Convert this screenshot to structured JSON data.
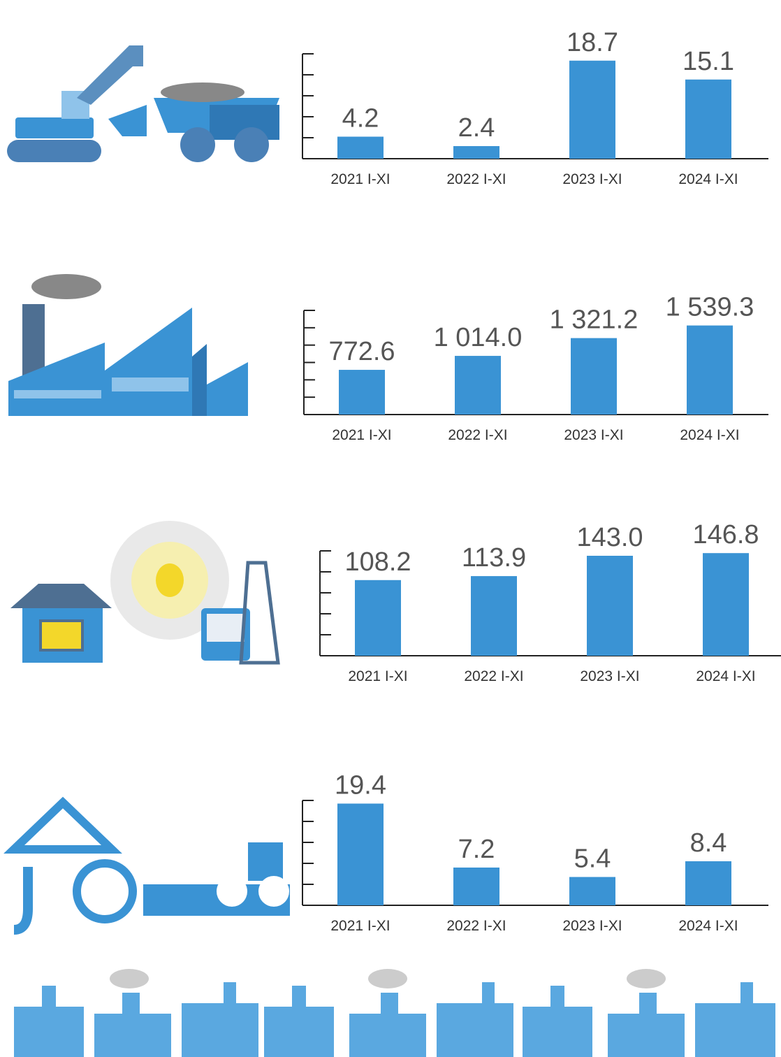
{
  "chart_data": [
    {
      "type": "bar",
      "categories": [
        "2021 I-XI",
        "2022 I-XI",
        "2023 I-XI",
        "2024 I-XI"
      ],
      "values": [
        4.2,
        2.4,
        18.7,
        15.1
      ],
      "color": "#3a93d4",
      "ylim": [
        0,
        20
      ],
      "yticks": [
        0,
        4,
        8,
        12,
        16,
        20
      ]
    },
    {
      "type": "bar",
      "categories": [
        "2021 I-XI",
        "2022 I-XI",
        "2023 I-XI",
        "2024 I-XI"
      ],
      "values": [
        772.6,
        1014.0,
        1321.2,
        1539.3
      ],
      "value_labels": [
        "772.6",
        "1 014.0",
        "1 321.2",
        "1 539.3"
      ],
      "color": "#3a93d4",
      "ylim": [
        0,
        1800
      ],
      "yticks": [
        0,
        300,
        600,
        900,
        1200,
        1500,
        1800
      ]
    },
    {
      "type": "bar",
      "categories": [
        "2021 I-XI",
        "2022 I-XI",
        "2023 I-XI",
        "2024 I-XI"
      ],
      "values": [
        108.2,
        113.9,
        143.0,
        146.8
      ],
      "value_labels": [
        "108.2",
        "113.9",
        "143.0",
        "146.8"
      ],
      "color": "#3a93d4",
      "ylim": [
        0,
        150
      ],
      "yticks": [
        0,
        30,
        60,
        90,
        120,
        150
      ]
    },
    {
      "type": "bar",
      "categories": [
        "2021 I-XI",
        "2022 I-XI",
        "2023 I-XI",
        "2024 I-XI"
      ],
      "values": [
        19.4,
        7.2,
        5.4,
        8.4
      ],
      "color": "#3a93d4",
      "ylim": [
        0,
        20
      ],
      "yticks": [
        0,
        4,
        8,
        12,
        16,
        20
      ]
    }
  ]
}
